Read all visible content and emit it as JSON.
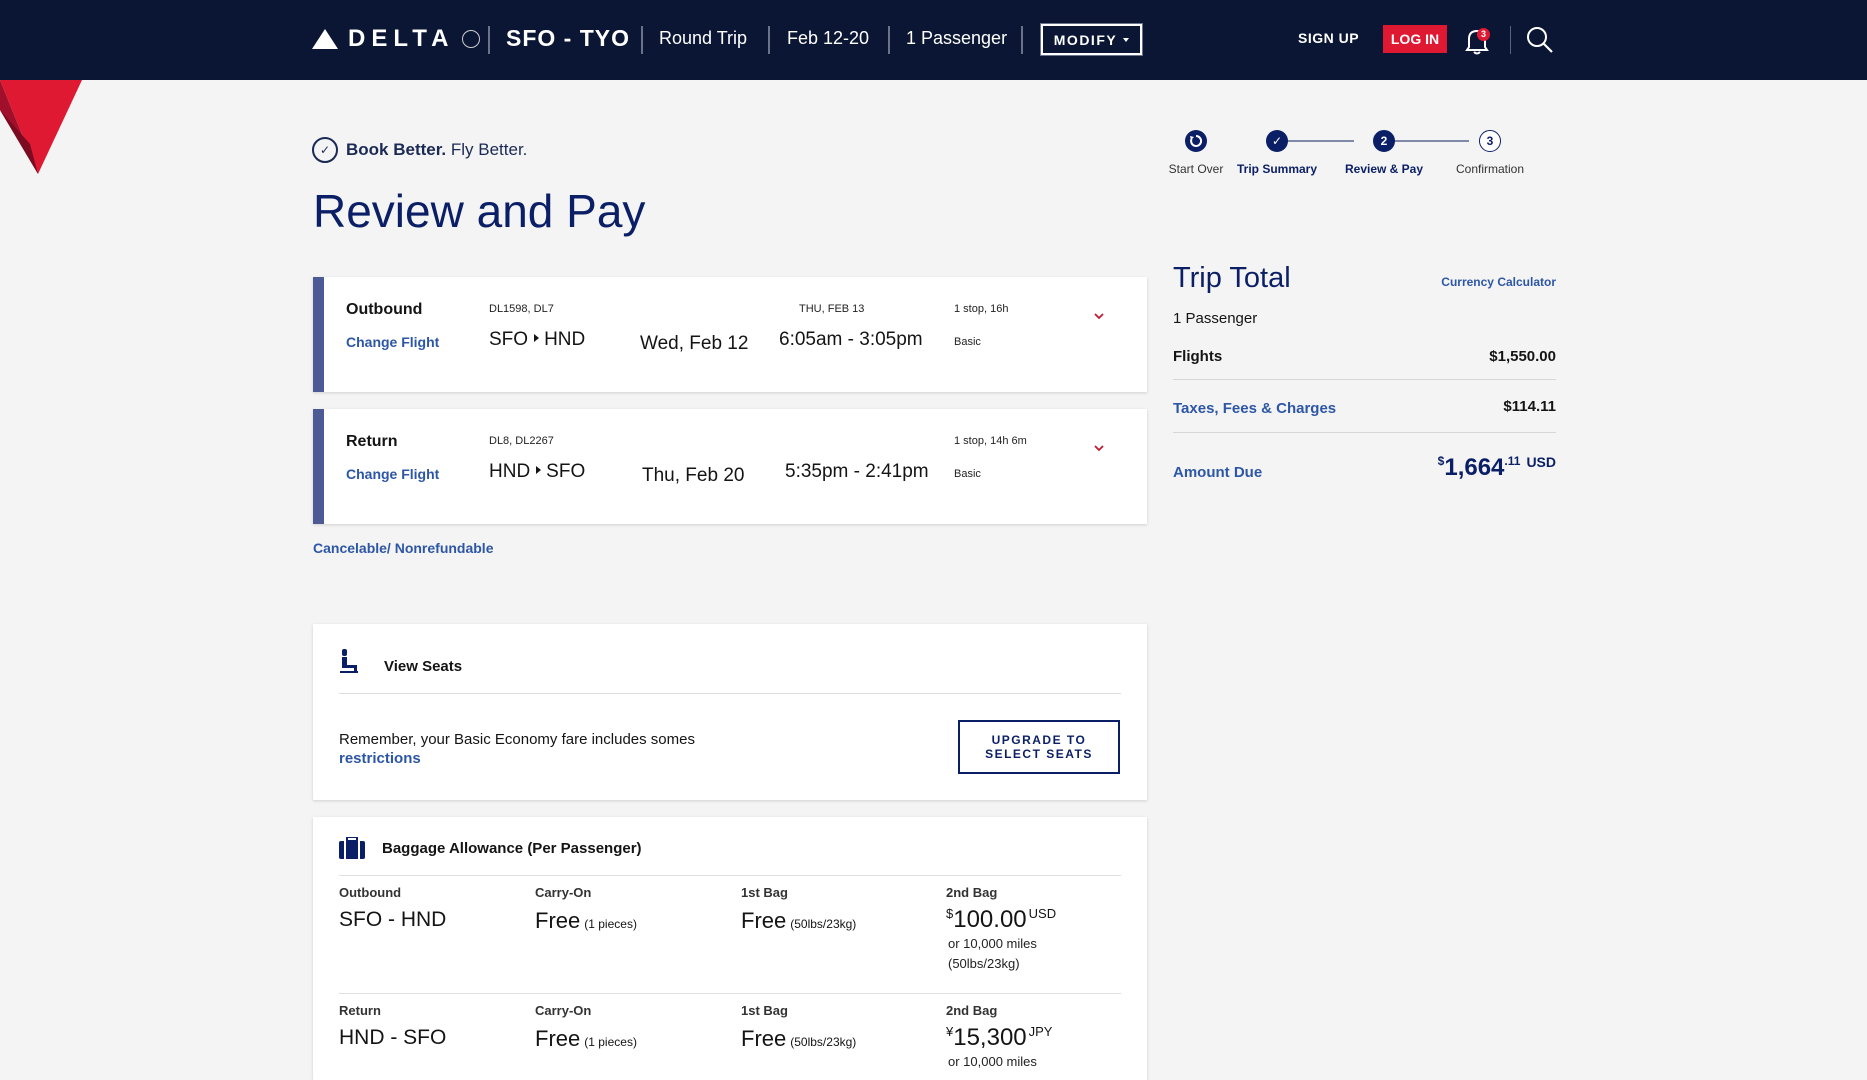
{
  "header": {
    "brand": "DELTA",
    "route": "SFO - TYO",
    "trip_type": "Round Trip",
    "dates": "Feb 12-20",
    "passengers": "1 Passenger",
    "modify_label": "MODIFY",
    "sign_up": "SIGN UP",
    "log_in": "LOG IN",
    "notification_count": "3"
  },
  "tagline": {
    "bold": "Book Better.",
    "rest": " Fly Better."
  },
  "page_title": "Review and Pay",
  "stepper": [
    {
      "label": "Start Over",
      "num": ""
    },
    {
      "label": "Trip Summary",
      "num": ""
    },
    {
      "label": "Review & Pay",
      "num": "2"
    },
    {
      "label": "Confirmation",
      "num": "3"
    }
  ],
  "flights": {
    "outbound": {
      "direction": "Outbound",
      "change": "Change Flight",
      "flight_numbers": "DL1598, DL7",
      "origin": "SFO",
      "destination": "HND",
      "date": "Wed, Feb 12",
      "arrival_date": "THU, FEB 13",
      "times": "6:05am - 3:05pm",
      "stops": "1 stop, 16h",
      "fare_class": "Basic"
    },
    "return": {
      "direction": "Return",
      "change": "Change Flight",
      "flight_numbers": "DL8, DL2267",
      "origin": "HND",
      "destination": "SFO",
      "date": "Thu, Feb 20",
      "times": "5:35pm - 2:41pm",
      "stops": "1 stop, 14h 6m",
      "fare_class": "Basic"
    }
  },
  "cancel_policy": "Cancelable/ Nonrefundable",
  "trip_total": {
    "title": "Trip Total",
    "currency_calculator": "Currency Calculator",
    "passengers": "1 Passenger",
    "flights_label": "Flights",
    "flights_value": "$1,550.00",
    "taxes_label": "Taxes, Fees & Charges",
    "taxes_value": "$114.11",
    "amount_due_label": "Amount Due",
    "amount_due_symbol": "$",
    "amount_due_whole": "1,664",
    "amount_due_cents": ".11",
    "amount_due_currency": "USD"
  },
  "seats": {
    "title": "View Seats",
    "message": "Remember, your Basic Economy fare includes somes",
    "restrictions_link": "restrictions",
    "upgrade_button": "UPGRADE TO SELECT SEATS"
  },
  "baggage": {
    "title": "Baggage Allowance (Per Passenger)",
    "rows": [
      {
        "leg_label": "Outbound",
        "leg_route": "SFO - HND",
        "carry_on_label": "Carry-On",
        "carry_on_value": "Free",
        "carry_on_note": "(1 pieces)",
        "bag1_label": "1st Bag",
        "bag1_value": "Free",
        "bag1_note": "(50lbs/23kg)",
        "bag2_label": "2nd Bag",
        "bag2_symbol": "$",
        "bag2_amount": "100.00",
        "bag2_currency": "USD",
        "bag2_miles": "or 10,000 miles",
        "bag2_weight": "(50lbs/23kg)"
      },
      {
        "leg_label": "Return",
        "leg_route": "HND - SFO",
        "carry_on_label": "Carry-On",
        "carry_on_value": "Free",
        "carry_on_note": "(1 pieces)",
        "bag1_label": "1st Bag",
        "bag1_value": "Free",
        "bag1_note": "(50lbs/23kg)",
        "bag2_label": "2nd Bag",
        "bag2_symbol": "¥",
        "bag2_amount": "15,300",
        "bag2_currency": "JPY",
        "bag2_miles": "or 10,000 miles"
      }
    ]
  },
  "colors": {
    "nav_bg": "#0a1633",
    "brand_navy": "#0b1f66",
    "link_blue": "#2d57a6",
    "delta_red": "#e01933",
    "card_accent": "#4c5b96"
  }
}
